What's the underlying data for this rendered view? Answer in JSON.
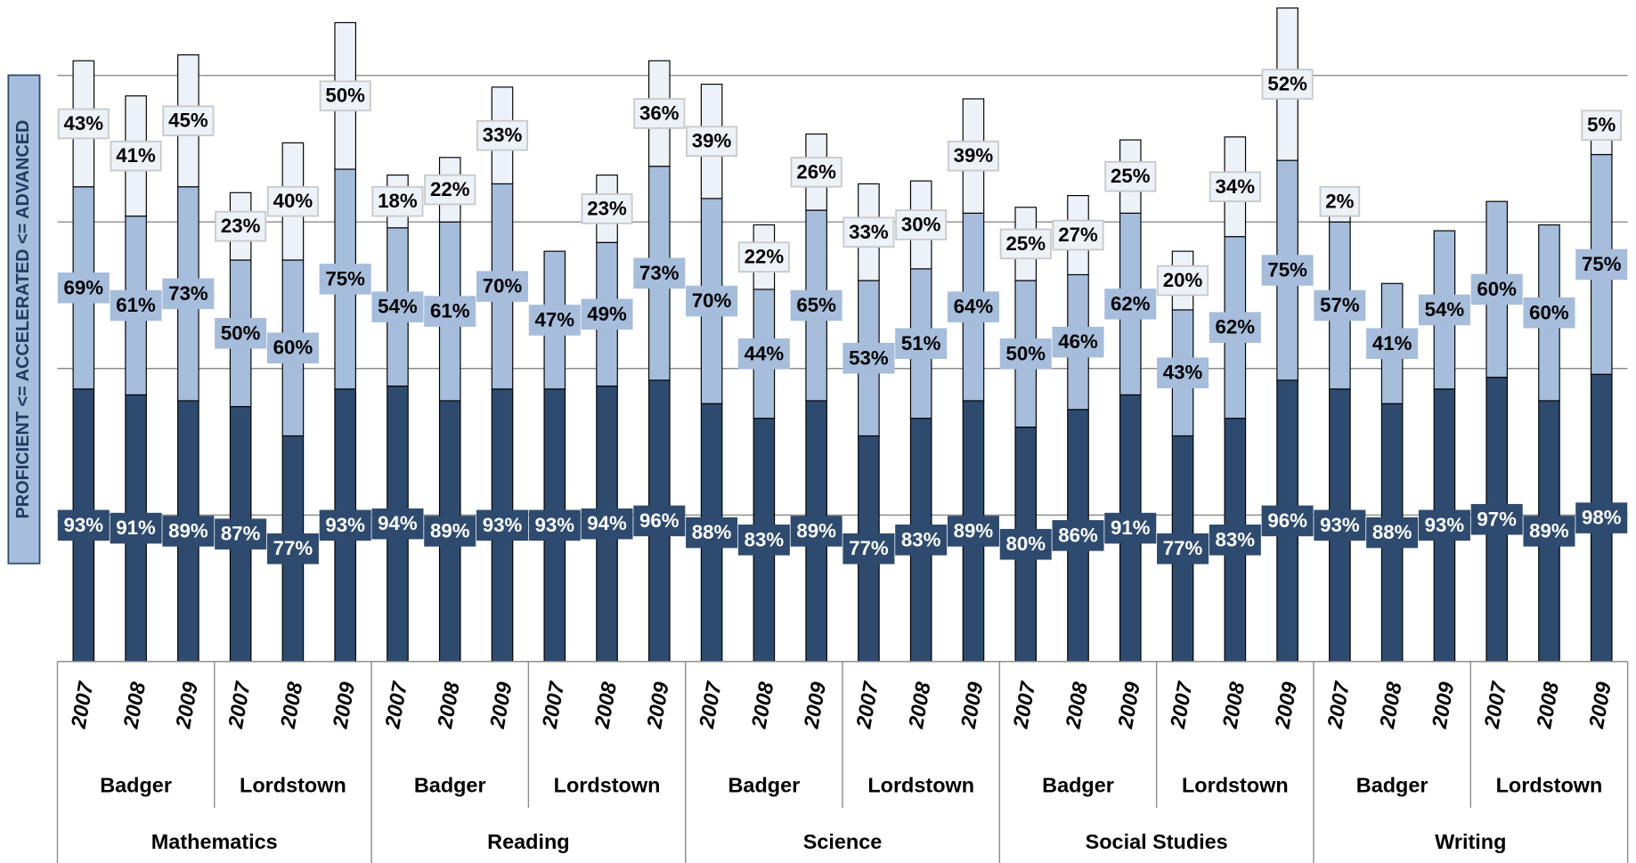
{
  "chart_data": {
    "type": "stacked_bar",
    "y_axis_title": "PROFICIENT <= ACCELERATED <= ADVANCED",
    "categories": [
      "2007",
      "2008",
      "2009",
      "2007",
      "2008",
      "2009",
      "2007",
      "2008",
      "2009",
      "2007",
      "2008",
      "2009",
      "2007",
      "2008",
      "2009",
      "2007",
      "2008",
      "2009",
      "2007",
      "2008",
      "2009",
      "2007",
      "2008",
      "2009",
      "2007",
      "2008",
      "2009",
      "2007",
      "2008",
      "2009"
    ],
    "schools": [
      "Badger",
      "Lordstown",
      "Badger",
      "Lordstown",
      "Badger",
      "Lordstown",
      "Badger",
      "Lordstown",
      "Badger",
      "Lordstown"
    ],
    "subjects": [
      "Mathematics",
      "Reading",
      "Science",
      "Social Studies",
      "Writing"
    ],
    "ylim": [
      0,
      225
    ],
    "yticks": [
      0,
      50,
      100,
      150,
      200
    ],
    "grid": true,
    "series": [
      {
        "color": "#2e4b6f",
        "text_color": "#ffffff",
        "values": [
          93,
          91,
          89,
          87,
          77,
          93,
          94,
          89,
          93,
          93,
          94,
          96,
          88,
          83,
          89,
          77,
          83,
          89,
          80,
          86,
          91,
          77,
          83,
          96,
          93,
          88,
          93,
          97,
          89,
          98
        ],
        "value_labels": [
          "93%",
          "91%",
          "89%",
          "87%",
          "77%",
          "93%",
          "94%",
          "89%",
          "93%",
          "93%",
          "94%",
          "96%",
          "88%",
          "83%",
          "89%",
          "77%",
          "83%",
          "89%",
          "80%",
          "86%",
          "91%",
          "77%",
          "83%",
          "96%",
          "93%",
          "88%",
          "93%",
          "97%",
          "89%",
          "98%"
        ]
      },
      {
        "color": "#a6bddc",
        "text_color": "#000000",
        "values": [
          69,
          61,
          73,
          50,
          60,
          75,
          54,
          61,
          70,
          47,
          49,
          73,
          70,
          44,
          65,
          53,
          51,
          64,
          50,
          46,
          62,
          43,
          62,
          75,
          57,
          41,
          54,
          60,
          60,
          75
        ],
        "value_labels": [
          "69%",
          "61%",
          "73%",
          "50%",
          "60%",
          "75%",
          "54%",
          "61%",
          "70%",
          "47%",
          "49%",
          "73%",
          "70%",
          "44%",
          "65%",
          "53%",
          "51%",
          "64%",
          "50%",
          "46%",
          "62%",
          "43%",
          "62%",
          "75%",
          "57%",
          "41%",
          "54%",
          "60%",
          "60%",
          "75%"
        ]
      },
      {
        "color": "#edf1f8",
        "text_color": "#000000",
        "values": [
          43,
          41,
          45,
          23,
          40,
          50,
          18,
          22,
          33,
          null,
          23,
          36,
          39,
          22,
          26,
          33,
          30,
          39,
          25,
          27,
          25,
          20,
          34,
          52,
          2,
          null,
          null,
          null,
          null,
          5
        ],
        "value_labels": [
          "43%",
          "41%",
          "45%",
          "23%",
          "40%",
          "50%",
          "18%",
          "22%",
          "33%",
          null,
          "23%",
          "36%",
          "39%",
          "22%",
          "26%",
          "33%",
          "30%",
          "39%",
          "25%",
          "27%",
          "25%",
          "20%",
          "34%",
          "52%",
          "2%",
          null,
          null,
          null,
          null,
          "5%"
        ]
      }
    ]
  }
}
